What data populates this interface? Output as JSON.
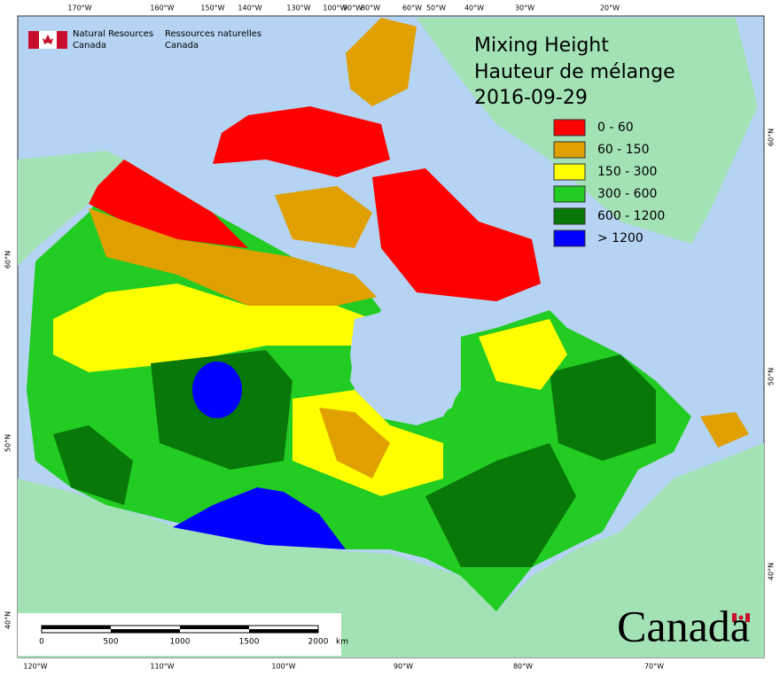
{
  "header": {
    "agency_en": [
      "Natural Resources",
      "Canada"
    ],
    "agency_fr": [
      "Ressources naturelles",
      "Canada"
    ]
  },
  "title": [
    "Mixing Height",
    "Hauteur de mélange"
  ],
  "date": "2016-09-29",
  "legend": [
    {
      "label": "0 - 60",
      "color": "#ff0000"
    },
    {
      "label": "60 - 150",
      "color": "#e0a000"
    },
    {
      "label": "150 - 300",
      "color": "#ffff00"
    },
    {
      "label": "300 - 600",
      "color": "#22cc22"
    },
    {
      "label": "600 - 1200",
      "color": "#087808"
    },
    {
      "label": "> 1200",
      "color": "#0000ff"
    }
  ],
  "graticule": {
    "top": [
      "170°W",
      "160°W",
      "150°W",
      "140°W",
      "130°W",
      "100°W",
      "90°W",
      "80°W",
      "60°W",
      "50°W",
      "40°W",
      "30°W",
      "20°W"
    ],
    "bottom": [
      "120°W",
      "110°W",
      "100°W",
      "90°W",
      "80°W",
      "70°W"
    ],
    "left": [
      "60°N",
      "50°N",
      "40°N"
    ],
    "right": [
      "60°N",
      "50°N",
      "40°N"
    ]
  },
  "scale_bar": {
    "labels": [
      "0",
      "500",
      "1000",
      "1500",
      "2000"
    ],
    "unit": "km"
  },
  "wordmark": "Canada"
}
